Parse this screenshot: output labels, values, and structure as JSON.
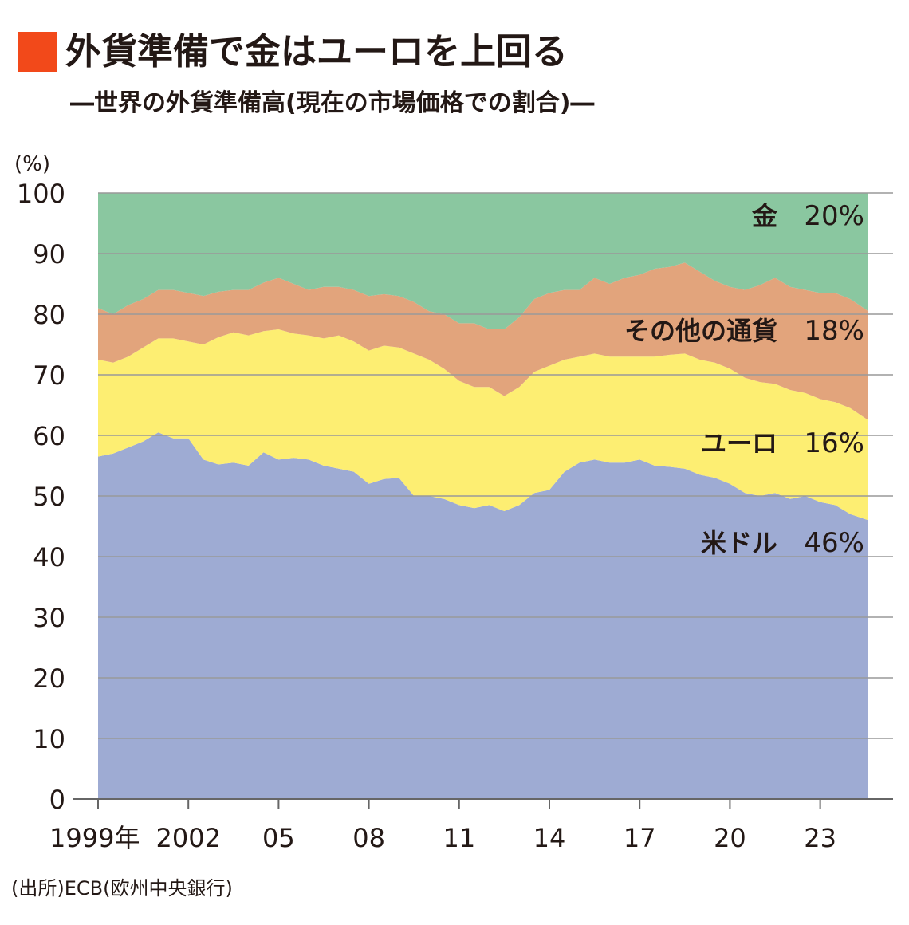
{
  "header": {
    "title": "外貨準備で金はユーロを上回る",
    "subtitle": "―世界の外貨準備高(現在の市場価格での割合)―"
  },
  "source": "(出所)ECB(欧州中央銀行)",
  "colors": {
    "accent": "#f2491a",
    "usd": "#9eabd3",
    "euro": "#fdee72",
    "other": "#e2a47c",
    "gold": "#8ac7a0",
    "grid": "#999999"
  },
  "chart_data": {
    "type": "area",
    "stacked": true,
    "unit_label": "(%)",
    "ylim": [
      0,
      100
    ],
    "y_ticks": [
      0,
      10,
      20,
      30,
      40,
      50,
      60,
      70,
      80,
      90,
      100
    ],
    "xlim": [
      1999.0,
      2024.6
    ],
    "x_ticks": [
      {
        "value": 1999,
        "label": "1999年"
      },
      {
        "value": 2002,
        "label": "2002"
      },
      {
        "value": 2005,
        "label": "05"
      },
      {
        "value": 2008,
        "label": "08"
      },
      {
        "value": 2011,
        "label": "11"
      },
      {
        "value": 2014,
        "label": "14"
      },
      {
        "value": 2017,
        "label": "17"
      },
      {
        "value": 2020,
        "label": "20"
      },
      {
        "value": 2023,
        "label": "23"
      }
    ],
    "x": [
      1999.0,
      1999.5,
      2000.0,
      2000.5,
      2001.0,
      2001.5,
      2002.0,
      2002.5,
      2003.0,
      2003.5,
      2004.0,
      2004.5,
      2005.0,
      2005.5,
      2006.0,
      2006.5,
      2007.0,
      2007.5,
      2008.0,
      2008.5,
      2009.0,
      2009.5,
      2010.0,
      2010.5,
      2011.0,
      2011.5,
      2012.0,
      2012.5,
      2013.0,
      2013.5,
      2014.0,
      2014.5,
      2015.0,
      2015.5,
      2016.0,
      2016.5,
      2017.0,
      2017.5,
      2018.0,
      2018.5,
      2019.0,
      2019.5,
      2020.0,
      2020.5,
      2021.0,
      2021.5,
      2022.0,
      2022.5,
      2023.0,
      2023.5,
      2024.0,
      2024.6
    ],
    "series": [
      {
        "name": "米ドル",
        "label": "46%",
        "color_key": "usd",
        "values": [
          56.5,
          57.0,
          58.0,
          59.0,
          60.5,
          59.5,
          59.5,
          56.0,
          55.2,
          55.5,
          55.0,
          57.2,
          56.0,
          56.3,
          56.0,
          55.0,
          54.5,
          54.0,
          52.0,
          52.8,
          53.0,
          50.0,
          50.0,
          49.5,
          48.5,
          48.0,
          48.5,
          47.5,
          48.5,
          50.5,
          51.0,
          54.0,
          55.5,
          56.0,
          55.5,
          55.5,
          56.0,
          55.0,
          54.8,
          54.5,
          53.5,
          53.0,
          52.0,
          50.5,
          50.0,
          50.5,
          49.5,
          50.0,
          49.0,
          48.5,
          47.0,
          46.0
        ]
      },
      {
        "name": "ユーロ",
        "label": "16%",
        "color_key": "euro",
        "values": [
          16.0,
          15.0,
          15.0,
          15.5,
          15.5,
          16.5,
          16.0,
          19.0,
          21.0,
          21.5,
          21.5,
          20.0,
          21.5,
          20.5,
          20.5,
          21.0,
          22.0,
          21.5,
          22.0,
          22.0,
          21.5,
          23.5,
          22.5,
          21.5,
          20.5,
          20.0,
          19.5,
          19.0,
          19.5,
          20.0,
          20.5,
          18.5,
          17.5,
          17.5,
          17.5,
          17.5,
          17.0,
          18.0,
          18.5,
          19.0,
          19.0,
          19.0,
          19.0,
          19.0,
          18.8,
          18.0,
          18.0,
          17.0,
          17.0,
          17.0,
          17.5,
          16.5
        ]
      },
      {
        "name": "その他の通貨",
        "label": "18%",
        "color_key": "other",
        "values": [
          8.5,
          8.0,
          8.5,
          8.0,
          8.0,
          8.0,
          8.0,
          8.0,
          7.5,
          7.0,
          7.5,
          8.0,
          8.5,
          8.2,
          7.5,
          8.5,
          8.0,
          8.5,
          9.0,
          8.5,
          8.5,
          8.5,
          8.0,
          9.0,
          9.5,
          10.5,
          9.5,
          11.0,
          11.5,
          12.0,
          12.0,
          11.5,
          11.0,
          12.5,
          12.0,
          13.0,
          13.5,
          14.5,
          14.5,
          15.0,
          14.5,
          13.5,
          13.5,
          14.5,
          16.0,
          17.5,
          17.0,
          17.0,
          17.5,
          18.0,
          18.0,
          18.0
        ]
      },
      {
        "name": "金",
        "label": "20%",
        "color_key": "gold",
        "values": [
          19.0,
          20.0,
          18.5,
          17.5,
          16.0,
          16.0,
          16.5,
          17.0,
          16.3,
          16.0,
          16.0,
          14.8,
          14.0,
          15.0,
          16.0,
          15.5,
          15.5,
          16.0,
          17.0,
          16.7,
          17.0,
          18.0,
          19.5,
          20.0,
          21.5,
          21.5,
          22.5,
          22.5,
          20.5,
          17.5,
          16.5,
          16.0,
          16.0,
          14.0,
          15.0,
          14.0,
          13.5,
          12.5,
          12.2,
          11.5,
          13.0,
          14.5,
          15.5,
          16.0,
          15.2,
          14.0,
          15.5,
          16.0,
          16.5,
          16.5,
          17.5,
          19.5
        ]
      }
    ]
  }
}
